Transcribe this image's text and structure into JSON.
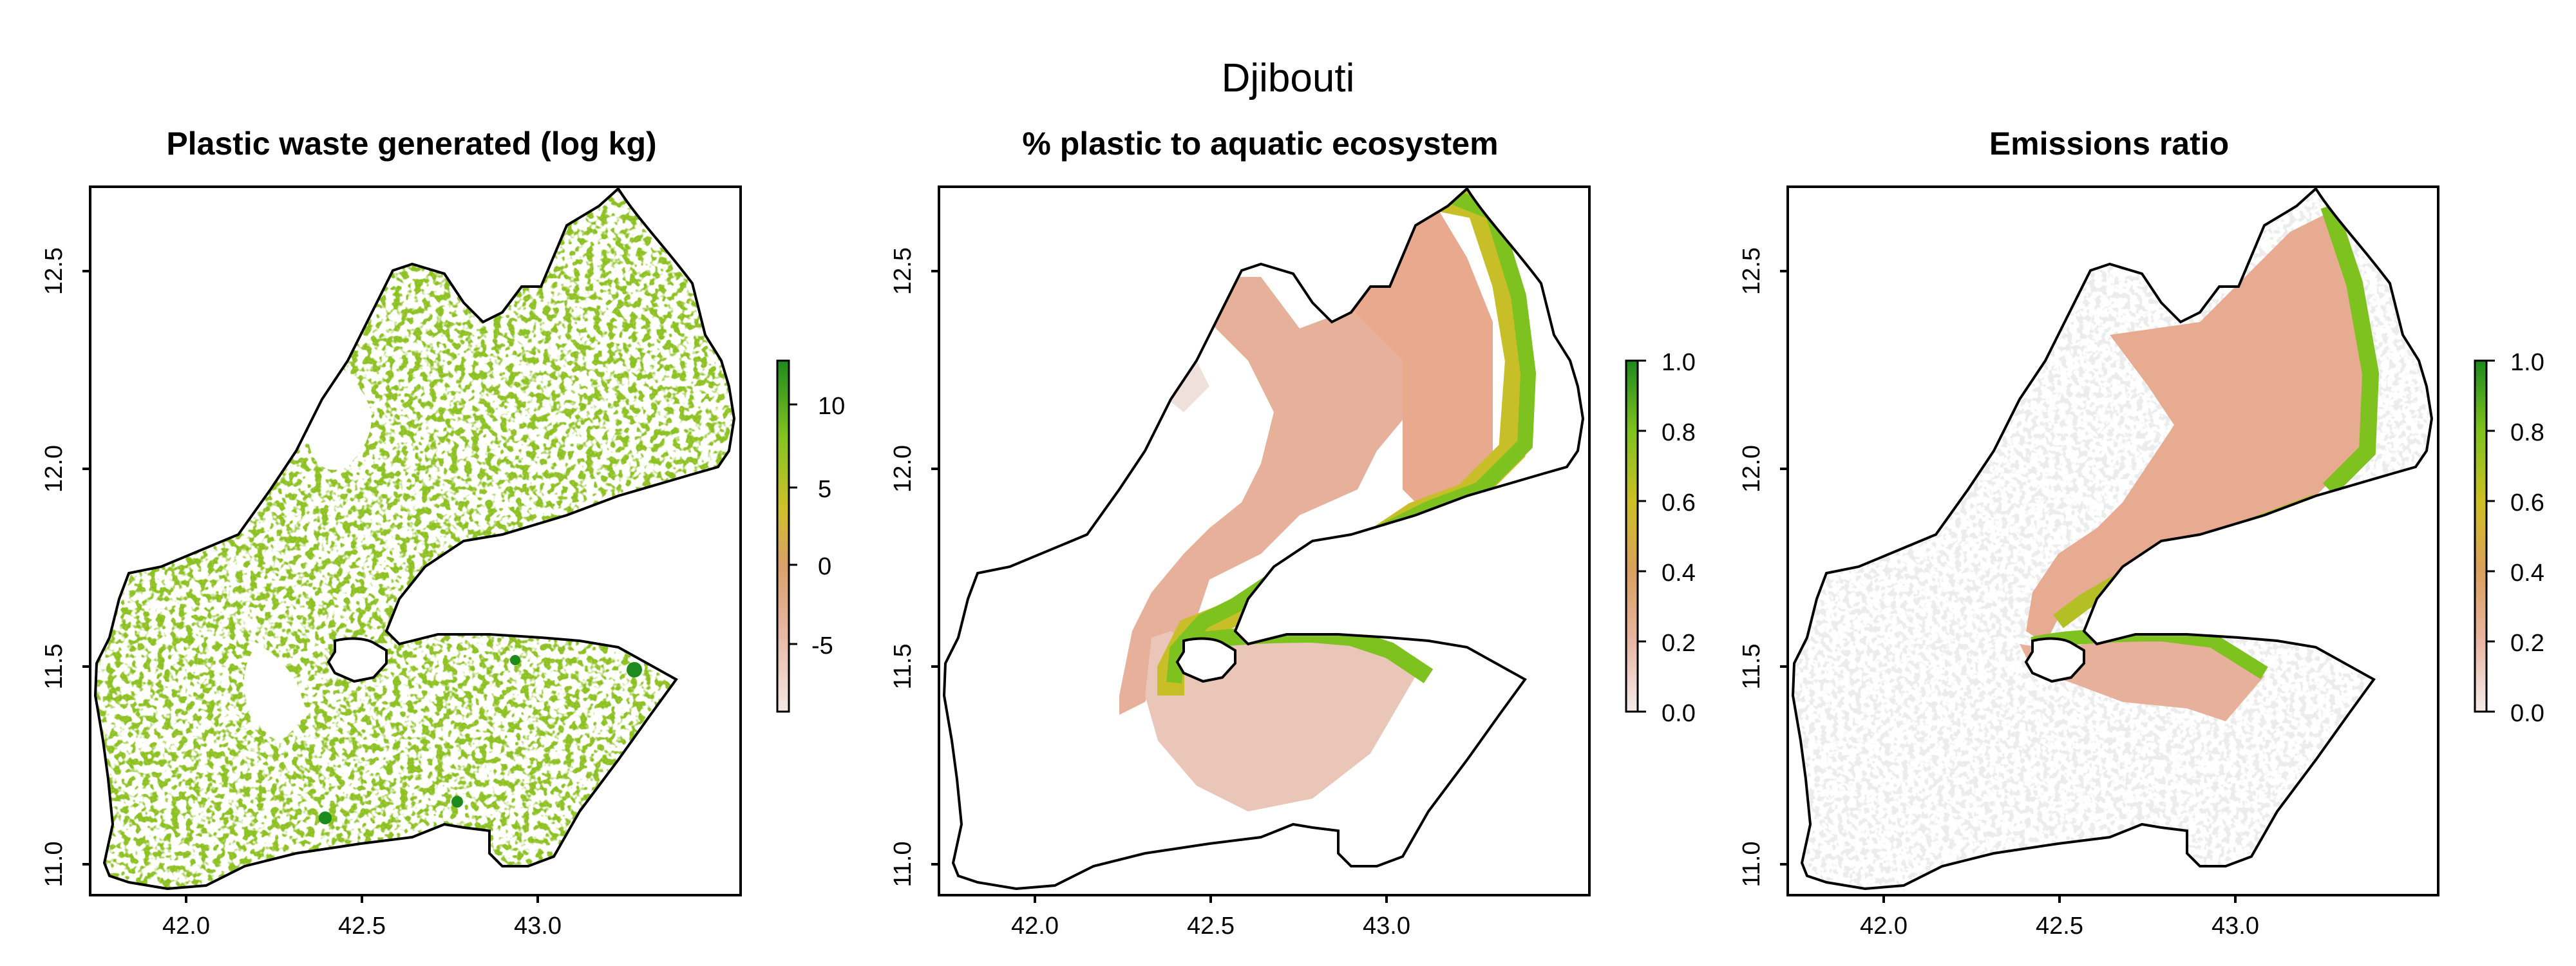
{
  "figure": {
    "title": "Djibouti"
  },
  "axes": {
    "x_ticks": [
      "42.0",
      "42.5",
      "43.0"
    ],
    "y_ticks": [
      "11.0",
      "11.5",
      "12.0",
      "12.5"
    ]
  },
  "colors": {
    "low_pink": "#f2dcd8",
    "salmon": "#e3a183",
    "orange": "#d8a050",
    "yellow": "#c8c020",
    "green": "#7cc020",
    "dark_green": "#1e8a1e",
    "grey": "#ececec",
    "outline": "#000000"
  },
  "panels": [
    {
      "title": "Plastic waste generated (log kg)",
      "legend": {
        "labels": [
          "10",
          "5",
          "0",
          "-5"
        ],
        "range": [
          -8,
          13
        ]
      }
    },
    {
      "title": "% plastic to aquatic ecosystem",
      "legend": {
        "labels": [
          "1.0",
          "0.8",
          "0.6",
          "0.4",
          "0.2",
          "0.0"
        ],
        "range": [
          0,
          1
        ]
      }
    },
    {
      "title": "Emissions ratio",
      "legend": {
        "labels": [
          "1.0",
          "0.8",
          "0.6",
          "0.4",
          "0.2",
          "0.0"
        ],
        "range": [
          0,
          1
        ]
      }
    }
  ]
}
